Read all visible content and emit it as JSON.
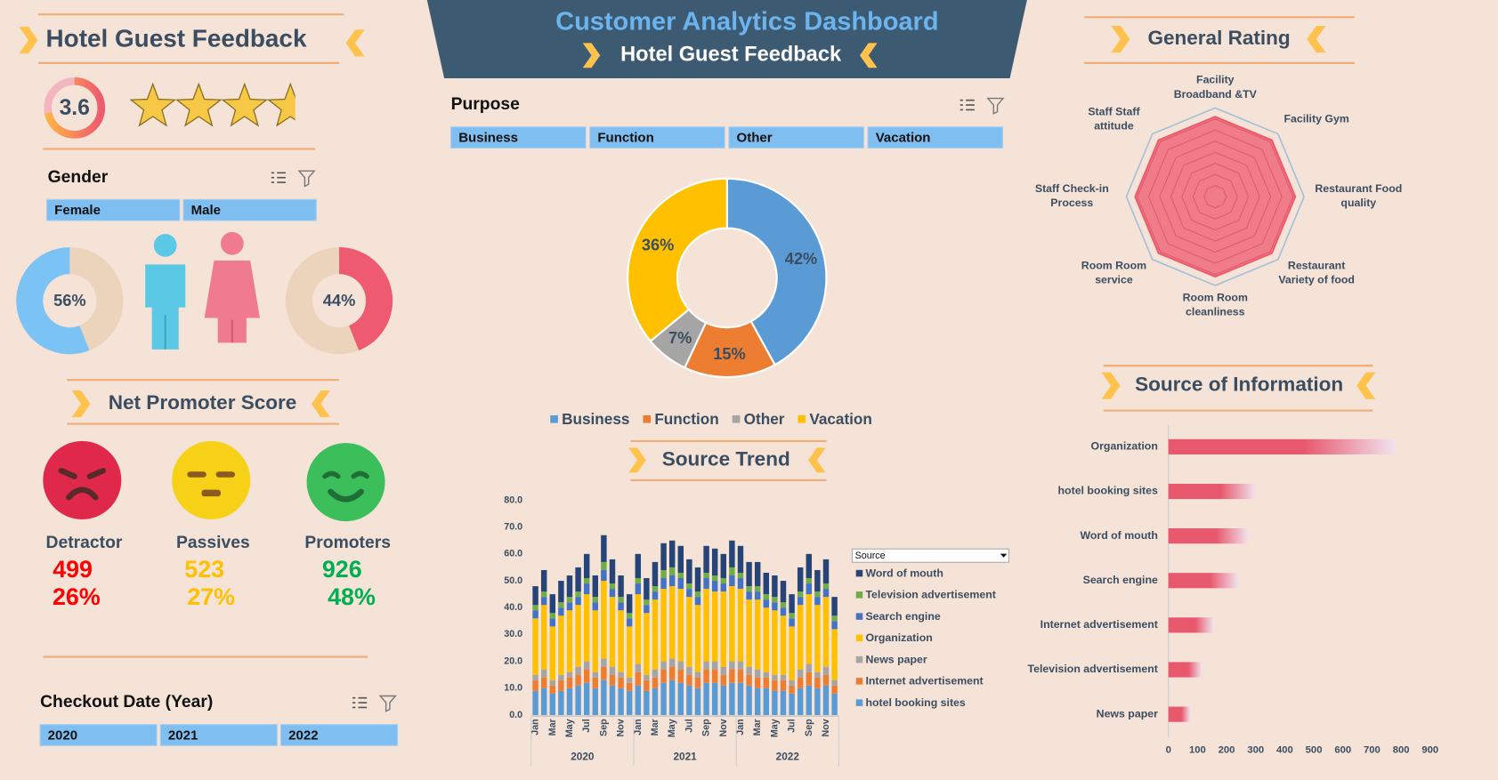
{
  "header": {
    "title": "Customer Analytics Dashboard",
    "subtitle": "Hotel Guest Feedback"
  },
  "left_title": "Hotel Guest Feedback",
  "rating": {
    "value": 3.6,
    "lim": [
      0,
      5
    ]
  },
  "slicers": [
    {
      "title": "Gender",
      "items": [
        "Female",
        "Male"
      ]
    },
    {
      "title": "Purpose",
      "items": [
        "Business",
        "Function",
        "Other",
        "Vacation"
      ]
    },
    {
      "title": "Checkout Date (Year)",
      "items": [
        "2020",
        "2021",
        "2022"
      ]
    }
  ],
  "nps": {
    "title": "Net Promoter Score",
    "groups": [
      {
        "name": "Detractor",
        "count": 499,
        "percent": "26%",
        "color": "#ff0000",
        "face_color": "#e0294a"
      },
      {
        "name": "Passives",
        "count": 523,
        "percent": "27%",
        "color": "#ffc000",
        "face_color": "#f7d117"
      },
      {
        "name": "Promoters",
        "count": 926,
        "percent": "48%",
        "color": "#00b050",
        "face_color": "#3cbf5a"
      }
    ]
  },
  "chart_data": [
    {
      "type": "donut-pair",
      "values": [
        56,
        44
      ],
      "value_labels": [
        "56%",
        "44%"
      ],
      "colors": [
        "#7cc3f5",
        "#ee5a6f"
      ],
      "track_color": "#ecd3bb"
    },
    {
      "type": "donut",
      "categories": [
        "Business",
        "Function",
        "Other",
        "Vacation"
      ],
      "values": [
        42,
        15,
        7,
        36
      ],
      "value_labels": [
        "42%",
        "15%",
        "7%",
        "36%"
      ],
      "colors": [
        "#5b9bd5",
        "#ed7d31",
        "#a5a5a5",
        "#ffc000"
      ],
      "legend": "bottom"
    },
    {
      "type": "stacked-bar",
      "title": "Source Trend",
      "filter_label": "Source",
      "legend": "right",
      "categories": [
        "Jan",
        null,
        "Mar",
        null,
        "May",
        null,
        "Jul",
        null,
        "Sep",
        null,
        "Nov",
        null,
        "Jan",
        null,
        "Mar",
        null,
        "May",
        null,
        "Jul",
        null,
        "Sep",
        null,
        "Nov",
        null,
        "Jan",
        null,
        "Mar",
        null,
        "May",
        null,
        "Jul",
        null,
        "Sep",
        null,
        "Nov",
        null
      ],
      "groups": [
        "2020",
        "2021",
        "2022"
      ],
      "series": [
        {
          "name": "hotel booking sites",
          "color": "#5b9bd5",
          "values": [
            9,
            10,
            8,
            9,
            10,
            11,
            12,
            10,
            13,
            11,
            10,
            9,
            11,
            9,
            10,
            12,
            13,
            12,
            11,
            10,
            12,
            12,
            11,
            12,
            12,
            11,
            10,
            10,
            9,
            9,
            8,
            10,
            11,
            10,
            11,
            8
          ]
        },
        {
          "name": "Internet advertisement",
          "color": "#ed7d31",
          "values": [
            4,
            4,
            3,
            4,
            4,
            4,
            5,
            4,
            5,
            4,
            4,
            3,
            5,
            4,
            4,
            5,
            5,
            5,
            4,
            4,
            5,
            5,
            4,
            5,
            5,
            4,
            4,
            4,
            4,
            4,
            3,
            4,
            5,
            4,
            4,
            3
          ]
        },
        {
          "name": "News paper",
          "color": "#a5a5a5",
          "values": [
            2,
            3,
            2,
            2,
            2,
            3,
            3,
            2,
            3,
            3,
            2,
            2,
            3,
            2,
            3,
            3,
            3,
            3,
            3,
            2,
            3,
            3,
            3,
            3,
            3,
            3,
            3,
            2,
            2,
            2,
            2,
            3,
            3,
            2,
            3,
            2
          ]
        },
        {
          "name": "Organization",
          "color": "#ffc000",
          "values": [
            21,
            24,
            20,
            22,
            23,
            23,
            25,
            23,
            29,
            26,
            23,
            19,
            26,
            23,
            26,
            27,
            27,
            27,
            26,
            25,
            27,
            26,
            28,
            28,
            27,
            25,
            26,
            24,
            24,
            22,
            20,
            24,
            26,
            25,
            26,
            19
          ]
        },
        {
          "name": "Search engine",
          "color": "#4472c4",
          "values": [
            3,
            3,
            3,
            3,
            3,
            3,
            4,
            3,
            4,
            3,
            3,
            3,
            4,
            3,
            3,
            4,
            4,
            4,
            3,
            3,
            4,
            4,
            3,
            4,
            4,
            3,
            3,
            3,
            3,
            3,
            3,
            3,
            4,
            3,
            3,
            3
          ]
        },
        {
          "name": "Television advertisement",
          "color": "#70ad47",
          "values": [
            2,
            2,
            2,
            2,
            2,
            2,
            2,
            2,
            3,
            2,
            2,
            2,
            2,
            2,
            2,
            3,
            3,
            2,
            2,
            2,
            2,
            2,
            2,
            3,
            2,
            2,
            2,
            2,
            2,
            2,
            2,
            2,
            2,
            2,
            2,
            2
          ]
        },
        {
          "name": "Word of mouth",
          "color": "#264478",
          "values": [
            7,
            8,
            7,
            8,
            8,
            9,
            9,
            8,
            10,
            9,
            8,
            7,
            9,
            8,
            9,
            10,
            10,
            10,
            9,
            9,
            10,
            10,
            9,
            10,
            10,
            9,
            9,
            8,
            8,
            8,
            7,
            9,
            9,
            8,
            9,
            7
          ]
        }
      ],
      "ylim": [
        0,
        80
      ],
      "yticks": [
        {
          "value": 0,
          "label": "0.0"
        },
        {
          "value": 10,
          "label": "10.0"
        },
        {
          "value": 20,
          "label": "20.0"
        },
        {
          "value": 30,
          "label": "30.0"
        },
        {
          "value": 40,
          "label": "40.0"
        },
        {
          "value": 50,
          "label": "50.0"
        },
        {
          "value": 60,
          "label": "60.0"
        },
        {
          "value": 70,
          "label": "70.0"
        },
        {
          "value": 80,
          "label": "80.0"
        }
      ]
    },
    {
      "type": "radar",
      "title": "General Rating",
      "color": "#ee5a6f",
      "categories": [
        [
          "Facility",
          "Broadband &TV"
        ],
        [
          "Facility Gym"
        ],
        [
          "Restaurant Food",
          "quality"
        ],
        [
          "Restaurant",
          "Variety of food"
        ],
        [
          "Room Room",
          "cleanliness"
        ],
        [
          "Room Room",
          "service"
        ],
        [
          "Staff Check-in",
          "Process"
        ],
        [
          "Staff Staff",
          "attitude"
        ]
      ],
      "values": [
        3.6,
        3.6,
        3.6,
        3.6,
        3.6,
        3.6,
        3.6,
        3.6
      ],
      "rlim": [
        0,
        4
      ],
      "rticks": [
        0.5,
        1,
        1.5,
        2,
        2.5,
        3,
        3.5,
        4
      ]
    },
    {
      "type": "hbar",
      "title": "Source of Information",
      "color": "#e8596e",
      "categories": [
        "Organization",
        "hotel booking sites",
        "Word of mouth",
        "Search engine",
        "Internet advertisement",
        "Television advertisement",
        "News paper"
      ],
      "values": [
        780,
        300,
        275,
        240,
        155,
        115,
        75
      ],
      "xlim": [
        0,
        900
      ],
      "xticks": [
        0,
        100,
        200,
        300,
        400,
        500,
        600,
        700,
        800,
        900
      ]
    }
  ]
}
